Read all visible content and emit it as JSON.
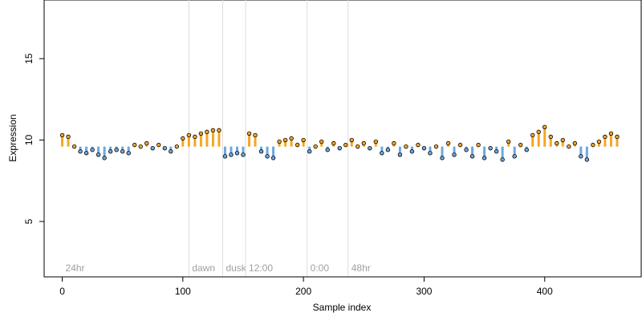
{
  "chart_data": {
    "type": "scatter",
    "xlabel": "Sample index",
    "ylabel": "Expression",
    "xlim": [
      -15,
      480
    ],
    "ylim": [
      1.6,
      18.6
    ],
    "x_ticks": [
      0,
      100,
      200,
      300,
      400
    ],
    "y_ticks": [
      5,
      10,
      15
    ],
    "grid": false,
    "colors": {
      "above": "#f5a623",
      "below": "#6fa8dc",
      "point_edge": "#000000",
      "vline": "#dcdcdc",
      "vline_text": "#a0a0a0"
    },
    "baseline": 9.6,
    "markers": [
      {
        "x": 0,
        "label": "24hr"
      },
      {
        "x": 105,
        "label": "dawn"
      },
      {
        "x": 133,
        "label": "dusk"
      },
      {
        "x": 152,
        "label": "12:00"
      },
      {
        "x": 203,
        "label": "0:00"
      },
      {
        "x": 237,
        "label": "48hr"
      }
    ],
    "x": [
      0,
      5,
      10,
      15,
      20,
      25,
      30,
      35,
      40,
      45,
      50,
      55,
      60,
      65,
      70,
      75,
      80,
      85,
      90,
      95,
      100,
      105,
      110,
      115,
      120,
      125,
      130,
      135,
      140,
      145,
      150,
      155,
      160,
      165,
      170,
      175,
      180,
      185,
      190,
      195,
      200,
      205,
      210,
      215,
      220,
      225,
      230,
      235,
      240,
      245,
      250,
      255,
      260,
      265,
      270,
      275,
      280,
      285,
      290,
      295,
      300,
      305,
      310,
      315,
      320,
      325,
      330,
      335,
      340,
      345,
      350,
      355,
      360,
      365,
      370,
      375,
      380,
      385,
      390,
      395,
      400,
      405,
      410,
      415,
      420,
      425,
      430,
      435,
      440,
      445,
      450,
      455,
      460
    ],
    "y": [
      10.3,
      10.2,
      9.6,
      9.3,
      9.2,
      9.4,
      9.1,
      8.9,
      9.3,
      9.4,
      9.3,
      9.2,
      9.7,
      9.6,
      9.8,
      9.5,
      9.7,
      9.5,
      9.3,
      9.6,
      10.1,
      10.3,
      10.2,
      10.4,
      10.5,
      10.6,
      10.6,
      9.0,
      9.1,
      9.2,
      9.1,
      10.4,
      10.3,
      9.3,
      9.0,
      8.9,
      9.9,
      10.0,
      10.1,
      9.7,
      10.0,
      9.3,
      9.6,
      9.9,
      9.4,
      9.8,
      9.5,
      9.7,
      10.0,
      9.6,
      9.8,
      9.5,
      9.9,
      9.2,
      9.4,
      9.8,
      9.1,
      9.6,
      9.3,
      9.7,
      9.5,
      9.2,
      9.6,
      8.9,
      9.8,
      9.1,
      9.7,
      9.4,
      9.0,
      9.7,
      8.9,
      9.5,
      9.3,
      8.8,
      9.9,
      9.0,
      9.7,
      9.4,
      10.3,
      10.5,
      10.8,
      10.2,
      9.8,
      10.0,
      9.6,
      9.8,
      9.0,
      8.8,
      9.7,
      9.9,
      10.2,
      10.4,
      10.2
    ]
  }
}
